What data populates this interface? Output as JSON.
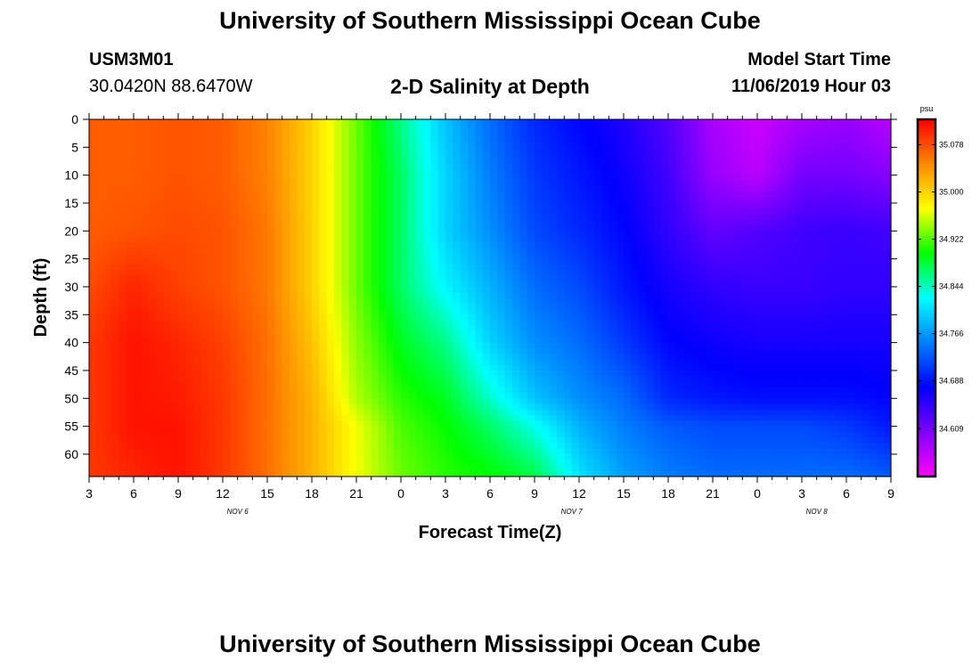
{
  "page": {
    "title_top": "University of Southern Mississippi Ocean Cube",
    "title_bottom": "University of Southern Mississippi Ocean Cube",
    "station_id": "USM3M01",
    "coordinates": "30.0420N 88.6470W",
    "subtitle": "2-D Salinity at Depth",
    "start_label": "Model Start Time",
    "start_value": "11/06/2019 Hour 03"
  },
  "chart_data": {
    "type": "heatmap",
    "title": "2-D Salinity at Depth",
    "xlabel": "Forecast Time(Z)",
    "ylabel": "Depth (ft)",
    "x_range_hours": [
      0,
      54
    ],
    "y_range_ft": [
      0,
      64
    ],
    "x_tick_labels": [
      "3",
      "6",
      "9",
      "12",
      "15",
      "18",
      "21",
      "0",
      "3",
      "6",
      "9",
      "12",
      "15",
      "18",
      "21",
      "0",
      "3",
      "6",
      "9"
    ],
    "date_labels": [
      {
        "text": "NOV 6",
        "hour": 10
      },
      {
        "text": "NOV 7",
        "hour": 32.5
      },
      {
        "text": "NOV 8",
        "hour": 49
      }
    ],
    "y_ticks": [
      0,
      5,
      10,
      15,
      20,
      25,
      30,
      35,
      40,
      45,
      50,
      55,
      60
    ],
    "colorbar": {
      "unit": "psu",
      "min": 34.53,
      "max": 35.12,
      "tick_labels": [
        "35.078",
        "35.000",
        "34.922",
        "34.844",
        "34.766",
        "34.688",
        "34.609"
      ],
      "tick_values": [
        35.078,
        35.0,
        34.922,
        34.844,
        34.766,
        34.688,
        34.609
      ]
    },
    "salinity_grid": {
      "depths_ft": [
        0,
        10,
        20,
        30,
        40,
        50,
        55,
        64
      ],
      "hours": [
        0,
        3,
        6,
        9,
        12,
        15,
        18,
        21,
        24,
        27,
        30,
        33,
        36,
        39,
        42,
        45,
        48,
        51,
        54
      ],
      "values": [
        [
          35.07,
          35.07,
          35.075,
          35.07,
          35.05,
          35.0,
          34.93,
          34.86,
          34.79,
          34.74,
          34.7,
          34.68,
          34.66,
          34.63,
          34.58,
          34.56,
          34.58,
          34.59,
          34.57
        ],
        [
          35.07,
          35.07,
          35.075,
          35.07,
          35.05,
          35.0,
          34.93,
          34.87,
          34.8,
          34.75,
          34.71,
          34.69,
          34.67,
          34.64,
          34.59,
          34.57,
          34.61,
          34.61,
          34.6
        ],
        [
          35.07,
          35.075,
          35.08,
          35.075,
          35.055,
          35.0,
          34.93,
          34.87,
          34.8,
          34.76,
          34.72,
          34.7,
          34.68,
          34.65,
          34.62,
          34.63,
          34.64,
          34.645,
          34.64
        ],
        [
          35.08,
          35.1,
          35.085,
          35.075,
          35.055,
          35.0,
          34.93,
          34.87,
          34.82,
          34.78,
          34.74,
          34.72,
          34.69,
          34.665,
          34.65,
          34.645,
          34.645,
          34.65,
          34.65
        ],
        [
          35.09,
          35.11,
          35.1,
          35.085,
          35.06,
          35.01,
          34.94,
          34.89,
          34.86,
          34.8,
          34.76,
          34.74,
          34.71,
          34.68,
          34.67,
          34.665,
          34.665,
          34.665,
          34.665
        ],
        [
          35.09,
          35.11,
          35.105,
          35.09,
          35.06,
          35.02,
          34.95,
          34.91,
          34.89,
          34.84,
          34.79,
          34.76,
          34.74,
          34.7,
          34.69,
          34.685,
          34.685,
          34.685,
          34.68
        ],
        [
          35.09,
          35.11,
          35.11,
          35.09,
          35.06,
          35.02,
          34.97,
          34.92,
          34.9,
          34.87,
          34.83,
          34.78,
          34.75,
          34.73,
          34.72,
          34.72,
          34.72,
          34.71,
          34.69
        ],
        [
          35.09,
          35.1,
          35.11,
          35.09,
          35.06,
          35.02,
          34.97,
          34.93,
          34.91,
          34.9,
          34.88,
          34.81,
          34.77,
          34.75,
          34.74,
          34.74,
          34.74,
          34.74,
          34.73
        ]
      ]
    }
  }
}
